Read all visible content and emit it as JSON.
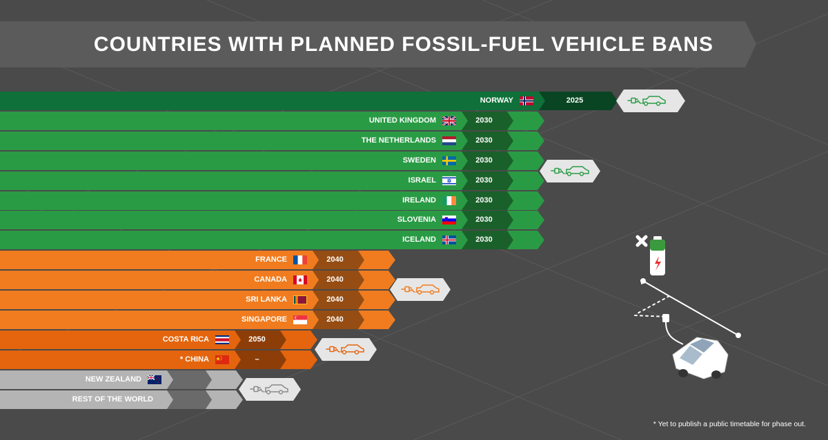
{
  "title": "COUNTRIES WITH PLANNED FOSSIL-FUEL VEHICLE BANS",
  "footnote": "* Yet to publish a public timetable for phase out.",
  "colors": {
    "background": "#4a4a4a",
    "norway_green": "#0f7039",
    "green_2030": "#2a9b45",
    "orange_2040": "#f07c1f",
    "orange_2050": "#e4650e",
    "grey_none": "#b4b4b4",
    "year_segment_dark": "#2c2c2c"
  },
  "chart_data": {
    "type": "bar",
    "title": "COUNTRIES WITH PLANNED FOSSIL-FUEL VEHICLE BANS",
    "xlabel": "",
    "ylabel": "",
    "categories": [
      "NORWAY",
      "UNITED KINGDOM",
      "THE NETHERLANDS",
      "SWEDEN",
      "ISRAEL",
      "IRELAND",
      "SLOVENIA",
      "ICELAND",
      "FRANCE",
      "CANADA",
      "SRI LANKA",
      "SINGAPORE",
      "COSTA RICA",
      "* CHINA",
      "NEW ZEALAND",
      "REST OF THE WORLD"
    ],
    "values": [
      2025,
      2030,
      2030,
      2030,
      2030,
      2030,
      2030,
      2030,
      2040,
      2040,
      2040,
      2040,
      2050,
      null,
      null,
      null
    ],
    "year_labels": [
      "2025",
      "2030",
      "2030",
      "2030",
      "2030",
      "2030",
      "2030",
      "2030",
      "2040",
      "2040",
      "2040",
      "2040",
      "2050",
      "–",
      "",
      ""
    ],
    "flags": [
      "norway",
      "uk",
      "netherlands",
      "sweden",
      "israel",
      "ireland",
      "slovenia",
      "iceland",
      "france",
      "canada",
      "sri-lanka",
      "singapore",
      "costa-rica",
      "china",
      "new-zealand",
      ""
    ],
    "groups": [
      {
        "rows": [
          0
        ],
        "tier": "2025",
        "color": "#0f7039"
      },
      {
        "rows": [
          1,
          2,
          3,
          4,
          5,
          6,
          7
        ],
        "tier": "2030",
        "color": "#2a9b45"
      },
      {
        "rows": [
          8,
          9,
          10,
          11
        ],
        "tier": "2040",
        "color": "#f07c1f"
      },
      {
        "rows": [
          12,
          13
        ],
        "tier": "2050",
        "color": "#e4650e"
      },
      {
        "rows": [
          14,
          15
        ],
        "tier": "none",
        "color": "#b4b4b4"
      }
    ]
  }
}
